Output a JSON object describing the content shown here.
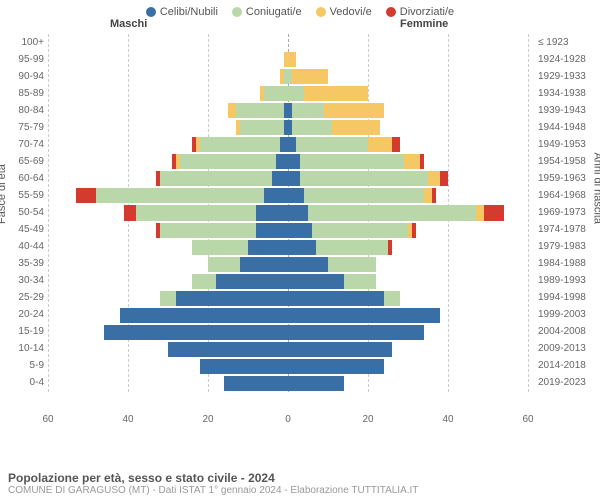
{
  "legend": [
    {
      "label": "Celibi/Nubili",
      "color": "#3a6fa6"
    },
    {
      "label": "Coniugati/e",
      "color": "#b9d7a8"
    },
    {
      "label": "Vedovi/e",
      "color": "#f6c765"
    },
    {
      "label": "Divorziati/e",
      "color": "#d33b2f"
    }
  ],
  "header_male": "Maschi",
  "header_female": "Femmine",
  "y_left_title": "Fasce di età",
  "y_right_title": "Anni di nascita",
  "footer_title": "Popolazione per età, sesso e stato civile - 2024",
  "footer_sub": "COMUNE DI GARAGUSO (MT) - Dati ISTAT 1° gennaio 2024 - Elaborazione TUTTITALIA.IT",
  "xlim": 60,
  "xtick_step": 20,
  "chart_bg": "#ffffff",
  "grid_color": "#cccccc",
  "age_bands": [
    {
      "age": "100+",
      "birth": "≤ 1923",
      "m": [
        0,
        0,
        0,
        0
      ],
      "f": [
        0,
        0,
        0,
        0
      ]
    },
    {
      "age": "95-99",
      "birth": "1924-1928",
      "m": [
        0,
        0,
        1,
        0
      ],
      "f": [
        0,
        0,
        2,
        0
      ]
    },
    {
      "age": "90-94",
      "birth": "1929-1933",
      "m": [
        0,
        1,
        1,
        0
      ],
      "f": [
        0,
        1,
        9,
        0
      ]
    },
    {
      "age": "85-89",
      "birth": "1934-1938",
      "m": [
        0,
        6,
        1,
        0
      ],
      "f": [
        0,
        4,
        16,
        0
      ]
    },
    {
      "age": "80-84",
      "birth": "1939-1943",
      "m": [
        1,
        12,
        2,
        0
      ],
      "f": [
        1,
        8,
        15,
        0
      ]
    },
    {
      "age": "75-79",
      "birth": "1944-1948",
      "m": [
        1,
        11,
        1,
        0
      ],
      "f": [
        1,
        10,
        12,
        0
      ]
    },
    {
      "age": "70-74",
      "birth": "1949-1953",
      "m": [
        2,
        20,
        1,
        1
      ],
      "f": [
        2,
        18,
        6,
        2
      ]
    },
    {
      "age": "65-69",
      "birth": "1954-1958",
      "m": [
        3,
        24,
        1,
        1
      ],
      "f": [
        3,
        26,
        4,
        1
      ]
    },
    {
      "age": "60-64",
      "birth": "1959-1963",
      "m": [
        4,
        28,
        0,
        1
      ],
      "f": [
        3,
        32,
        3,
        2
      ]
    },
    {
      "age": "55-59",
      "birth": "1964-1968",
      "m": [
        6,
        42,
        0,
        5
      ],
      "f": [
        4,
        30,
        2,
        1
      ]
    },
    {
      "age": "50-54",
      "birth": "1969-1973",
      "m": [
        8,
        30,
        0,
        3
      ],
      "f": [
        5,
        42,
        2,
        5
      ]
    },
    {
      "age": "45-49",
      "birth": "1974-1978",
      "m": [
        8,
        24,
        0,
        1
      ],
      "f": [
        6,
        24,
        1,
        1
      ]
    },
    {
      "age": "40-44",
      "birth": "1979-1983",
      "m": [
        10,
        14,
        0,
        0
      ],
      "f": [
        7,
        18,
        0,
        1
      ]
    },
    {
      "age": "35-39",
      "birth": "1984-1988",
      "m": [
        12,
        8,
        0,
        0
      ],
      "f": [
        10,
        12,
        0,
        0
      ]
    },
    {
      "age": "30-34",
      "birth": "1989-1993",
      "m": [
        18,
        6,
        0,
        0
      ],
      "f": [
        14,
        8,
        0,
        0
      ]
    },
    {
      "age": "25-29",
      "birth": "1994-1998",
      "m": [
        28,
        4,
        0,
        0
      ],
      "f": [
        24,
        4,
        0,
        0
      ]
    },
    {
      "age": "20-24",
      "birth": "1999-2003",
      "m": [
        42,
        0,
        0,
        0
      ],
      "f": [
        38,
        0,
        0,
        0
      ]
    },
    {
      "age": "15-19",
      "birth": "2004-2008",
      "m": [
        46,
        0,
        0,
        0
      ],
      "f": [
        34,
        0,
        0,
        0
      ]
    },
    {
      "age": "10-14",
      "birth": "2009-2013",
      "m": [
        30,
        0,
        0,
        0
      ],
      "f": [
        26,
        0,
        0,
        0
      ]
    },
    {
      "age": "5-9",
      "birth": "2014-2018",
      "m": [
        22,
        0,
        0,
        0
      ],
      "f": [
        24,
        0,
        0,
        0
      ]
    },
    {
      "age": "0-4",
      "birth": "2019-2023",
      "m": [
        16,
        0,
        0,
        0
      ],
      "f": [
        14,
        0,
        0,
        0
      ]
    }
  ]
}
